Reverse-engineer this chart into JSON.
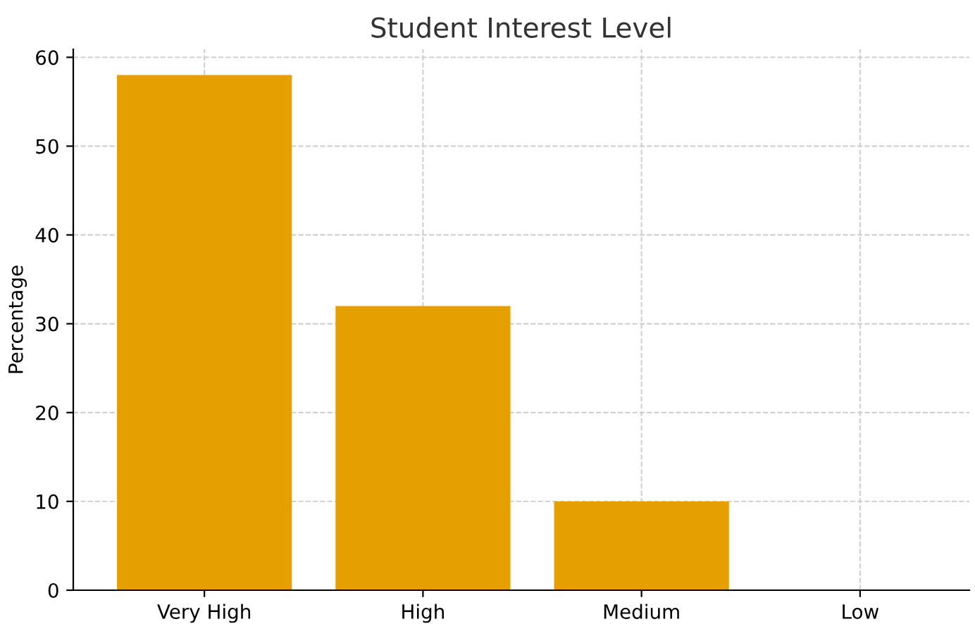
{
  "chart_data": {
    "type": "bar",
    "title": "Student Interest Level",
    "ylabel": "Percentage",
    "categories": [
      "Very High",
      "High",
      "Medium",
      "Low"
    ],
    "values": [
      58,
      32,
      10,
      0
    ],
    "color": "#e5a000",
    "ylim": [
      0,
      60.9
    ],
    "yticks": [
      0,
      10,
      20,
      30,
      40,
      50,
      60
    ],
    "grid": true
  }
}
